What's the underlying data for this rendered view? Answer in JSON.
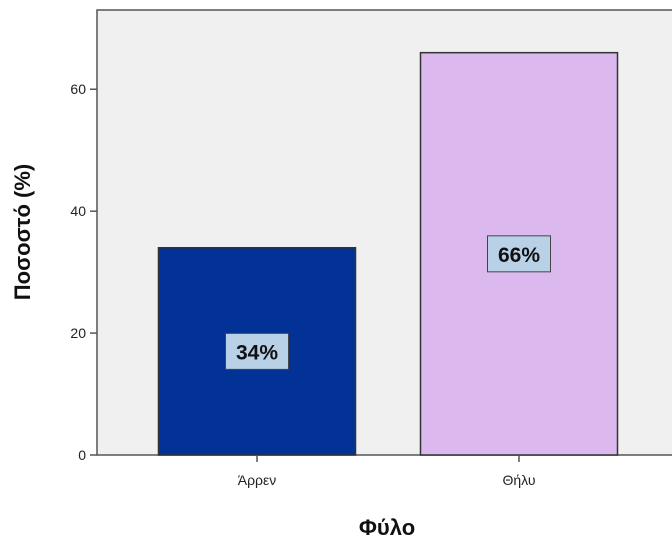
{
  "chart_data": {
    "type": "bar",
    "categories": [
      "Άρρεν",
      "Θήλυ"
    ],
    "values": [
      34,
      66
    ],
    "data_labels": [
      "34%",
      "66%"
    ],
    "xlabel": "Φύλο",
    "ylabel": "Ποσοστό (%)",
    "ylim": [
      0,
      73
    ],
    "yticks": [
      0,
      20,
      40,
      60
    ],
    "grid": false,
    "colors": {
      "plot_background": "#f0f0f0",
      "bars": [
        "#023296",
        "#dbb9ee"
      ],
      "label_box": "#b9d1e7",
      "axis": "#555555"
    }
  }
}
